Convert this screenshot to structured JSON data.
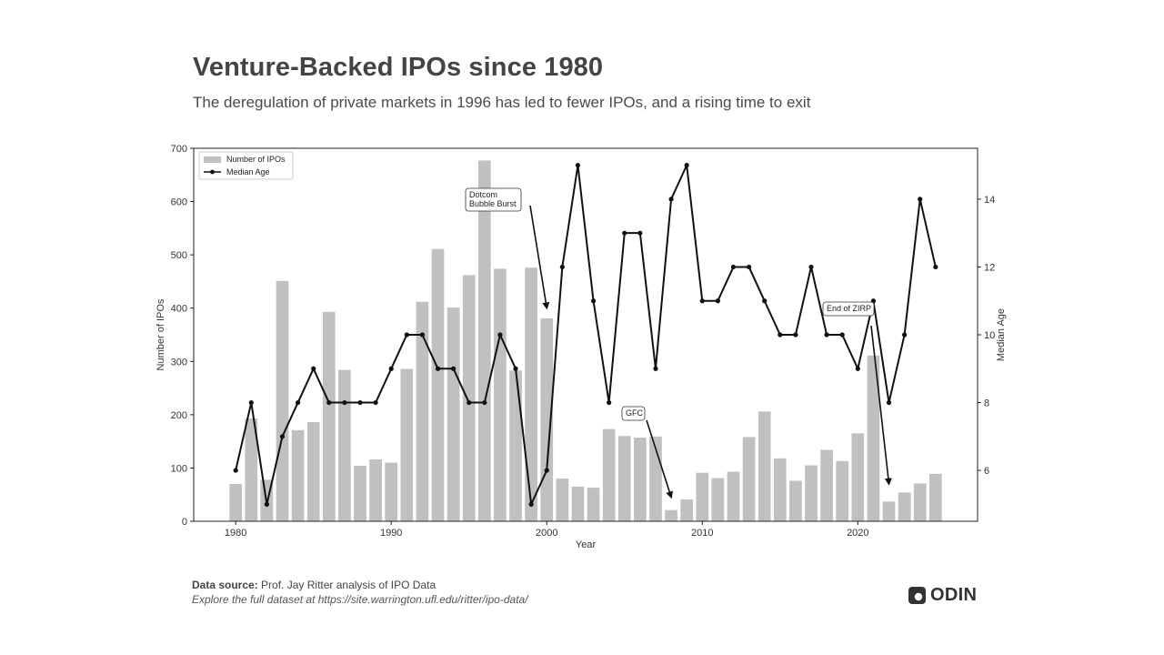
{
  "title": "Venture-Backed IPOs since 1980",
  "subtitle": "The deregulation of private markets in 1996 has led to fewer IPOs, and a rising time to exit",
  "footer": {
    "source_label": "Data source:",
    "source_text": "Prof. Jay Ritter analysis of IPO Data",
    "explore": "Explore the full dataset at https://site.warrington.ufl.edu/ritter/ipo-data/"
  },
  "brand": {
    "name": "ODIN"
  },
  "colors": {
    "bar": "#c0c0c0",
    "line": "#111111",
    "axis": "#222222"
  },
  "chart_data": {
    "type": "bar",
    "xlabel": "Year",
    "ylabel": "Number of IPOs",
    "y2label": "Median Age",
    "ylim": [
      0,
      700
    ],
    "y2lim": [
      4.5,
      15.5
    ],
    "xlim": [
      1977.3,
      2027.7
    ],
    "xticks": [
      1980,
      1990,
      2000,
      2010,
      2020
    ],
    "yticks": [
      0,
      100,
      200,
      300,
      400,
      500,
      600,
      700
    ],
    "y2ticks": [
      6,
      8,
      10,
      12,
      14
    ],
    "legend": [
      "Number of IPOs",
      "Median Age"
    ],
    "legend_position": "top-left",
    "x": [
      1980,
      1981,
      1982,
      1983,
      1984,
      1985,
      1986,
      1987,
      1988,
      1989,
      1990,
      1991,
      1992,
      1993,
      1994,
      1995,
      1996,
      1997,
      1998,
      1999,
      2000,
      2001,
      2002,
      2003,
      2004,
      2005,
      2006,
      2007,
      2008,
      2009,
      2010,
      2011,
      2012,
      2013,
      2014,
      2015,
      2016,
      2017,
      2018,
      2019,
      2020,
      2021,
      2022,
      2023,
      2024,
      2025
    ],
    "series": [
      {
        "name": "Number of IPOs",
        "kind": "bar",
        "values": [
          70,
          193,
          78,
          451,
          171,
          186,
          393,
          284,
          104,
          116,
          110,
          286,
          412,
          511,
          401,
          462,
          677,
          474,
          283,
          476,
          381,
          80,
          65,
          63,
          173,
          160,
          157,
          159,
          21,
          41,
          91,
          81,
          93,
          158,
          206,
          118,
          76,
          105,
          134,
          113,
          165,
          311,
          37,
          54,
          71,
          89
        ]
      },
      {
        "name": "Median Age",
        "kind": "line",
        "axis": "right",
        "values": [
          6,
          8,
          5,
          7,
          8,
          9,
          8,
          8,
          8,
          8,
          9,
          10,
          10,
          9,
          9,
          8,
          8,
          10,
          9,
          5,
          6,
          12,
          15,
          11,
          8,
          13,
          13,
          9,
          14,
          15,
          11,
          11,
          12,
          12,
          11,
          10,
          10,
          12,
          10,
          10,
          9,
          11,
          8,
          10,
          14,
          12
        ]
      }
    ],
    "annotations": [
      {
        "label_lines": [
          "Dotcom",
          "Bubble Burst"
        ],
        "target_year": 2000,
        "target_ipos": 380
      },
      {
        "label_lines": [
          "GFC"
        ],
        "target_year": 2008,
        "target_ipos": 25
      },
      {
        "label_lines": [
          "End of ZIRP"
        ],
        "target_year": 2022,
        "target_ipos": 50
      }
    ]
  }
}
